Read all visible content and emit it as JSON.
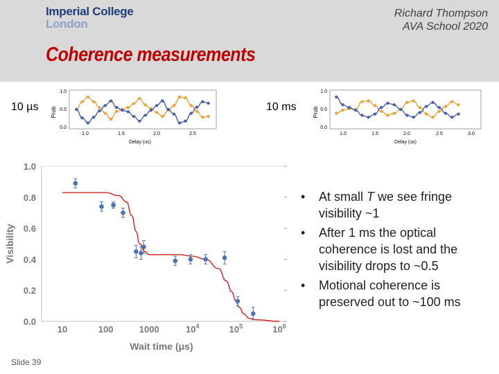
{
  "header": {
    "logo_line1": "Imperial College",
    "logo_line2": "London",
    "author": "Richard Thompson",
    "event": "AVA School 2020"
  },
  "slide_title": "Coherence measurements",
  "fringe_panels": [
    {
      "label": "10 µs",
      "xlabel": "Delay (us)",
      "ylabel": "Prob",
      "xticks": [
        "1.0",
        "1.5",
        "2.0",
        "2.5"
      ],
      "yticks": [
        "0.0",
        "0.5",
        "1.0"
      ]
    },
    {
      "label": "10 ms",
      "xlabel": "Delay (us)",
      "ylabel": "Prob",
      "xticks": [
        "1.0",
        "1.5",
        "2.0",
        "2.5",
        "3.0"
      ],
      "yticks": [
        "0.0",
        "0.5",
        "1.0"
      ]
    }
  ],
  "chart_data": [
    {
      "type": "scatter",
      "title": "",
      "xlabel": "Delay (us)",
      "ylabel": "Prob",
      "xlim": [
        0.7,
        2.75
      ],
      "ylim": [
        0,
        1
      ],
      "series": [
        {
          "color": "#e8a33a",
          "x": [
            0.8,
            0.88,
            0.96,
            1.04,
            1.12,
            1.2,
            1.28,
            1.36,
            1.44,
            1.52,
            1.6,
            1.68,
            1.76,
            1.84,
            1.92,
            2.0,
            2.08,
            2.16,
            2.24,
            2.32,
            2.4,
            2.48,
            2.56,
            2.64
          ],
          "values": [
            0.5,
            0.7,
            0.82,
            0.7,
            0.55,
            0.4,
            0.25,
            0.45,
            0.5,
            0.55,
            0.65,
            0.78,
            0.62,
            0.52,
            0.42,
            0.32,
            0.48,
            0.6,
            0.82,
            0.8,
            0.6,
            0.45,
            0.3,
            0.32
          ]
        },
        {
          "color": "#4a5fb0",
          "x": [
            0.8,
            0.88,
            0.96,
            1.04,
            1.12,
            1.2,
            1.28,
            1.36,
            1.44,
            1.52,
            1.6,
            1.68,
            1.76,
            1.84,
            1.92,
            2.0,
            2.08,
            2.16,
            2.24,
            2.32,
            2.4,
            2.48,
            2.56,
            2.64
          ],
          "values": [
            0.5,
            0.28,
            0.15,
            0.3,
            0.46,
            0.6,
            0.72,
            0.55,
            0.48,
            0.44,
            0.32,
            0.2,
            0.35,
            0.48,
            0.6,
            0.72,
            0.5,
            0.38,
            0.15,
            0.2,
            0.4,
            0.56,
            0.7,
            0.66
          ]
        }
      ]
    },
    {
      "type": "scatter",
      "title": "",
      "xlabel": "Delay (us)",
      "ylabel": "Prob",
      "xlim": [
        0.7,
        3.05
      ],
      "ylim": [
        0,
        1
      ],
      "series": [
        {
          "color": "#e8a33a",
          "x": [
            0.8,
            0.9,
            1.0,
            1.1,
            1.2,
            1.3,
            1.4,
            1.5,
            1.6,
            1.7,
            1.8,
            1.9,
            2.0,
            2.1,
            2.2,
            2.3,
            2.4,
            2.5,
            2.6,
            2.7
          ],
          "values": [
            0.4,
            0.48,
            0.52,
            0.5,
            0.7,
            0.72,
            0.6,
            0.45,
            0.35,
            0.4,
            0.5,
            0.68,
            0.72,
            0.55,
            0.38,
            0.3,
            0.45,
            0.58,
            0.7,
            0.62
          ]
        },
        {
          "color": "#4a5fb0",
          "x": [
            0.8,
            0.9,
            1.0,
            1.1,
            1.2,
            1.3,
            1.4,
            1.5,
            1.6,
            1.7,
            1.8,
            1.9,
            2.0,
            2.1,
            2.2,
            2.3,
            2.4,
            2.5,
            2.6,
            2.7
          ],
          "values": [
            0.82,
            0.62,
            0.55,
            0.48,
            0.35,
            0.3,
            0.38,
            0.55,
            0.66,
            0.62,
            0.5,
            0.35,
            0.3,
            0.42,
            0.58,
            0.68,
            0.55,
            0.4,
            0.3,
            0.38
          ]
        }
      ]
    },
    {
      "type": "scatter",
      "title": "",
      "xlabel": "Wait time (μs)",
      "ylabel": "Visibility",
      "x_scale": "log",
      "xlim": [
        10,
        1000000
      ],
      "ylim": [
        0,
        1
      ],
      "xticks": [
        "10",
        "100",
        "1000",
        "10^4",
        "10^5",
        "10^6"
      ],
      "yticks": [
        "0.0",
        "0.2",
        "0.4",
        "0.6",
        "0.8",
        "1.0"
      ],
      "series": [
        {
          "color": "#4a73b0",
          "x": [
            20,
            80,
            150,
            250,
            500,
            650,
            750,
            4000,
            9000,
            20000,
            55000,
            110000,
            250000
          ],
          "values": [
            0.89,
            0.74,
            0.75,
            0.7,
            0.45,
            0.44,
            0.48,
            0.39,
            0.4,
            0.4,
            0.41,
            0.13,
            0.05
          ],
          "errors": [
            0.03,
            0.03,
            0.02,
            0.03,
            0.04,
            0.04,
            0.04,
            0.03,
            0.03,
            0.03,
            0.04,
            0.03,
            0.04
          ]
        },
        {
          "color": "#d42020",
          "curve": "fit",
          "x": [
            10,
            100,
            200,
            300,
            400,
            500,
            600,
            800,
            1000,
            2000,
            5000,
            10000,
            20000,
            40000,
            60000,
            80000,
            100000,
            120000,
            150000,
            200000,
            300000,
            1000000
          ],
          "values": [
            0.83,
            0.83,
            0.81,
            0.77,
            0.68,
            0.58,
            0.5,
            0.45,
            0.43,
            0.43,
            0.43,
            0.42,
            0.4,
            0.34,
            0.26,
            0.19,
            0.13,
            0.09,
            0.05,
            0.02,
            0.01,
            0.0
          ]
        }
      ]
    }
  ],
  "bullets": [
    {
      "marker": "•",
      "prefix": "At small ",
      "emph": "T",
      "suffix": " we see fringe visibility ~1"
    },
    {
      "marker": "•",
      "prefix": "After 1 ms the optical coherence is lost and the visibility drops to ~0.5",
      "emph": "",
      "suffix": ""
    },
    {
      "marker": "•",
      "prefix": "Motional coherence is preserved out to ~100 ms",
      "emph": "",
      "suffix": ""
    }
  ],
  "footer": "Slide 39"
}
